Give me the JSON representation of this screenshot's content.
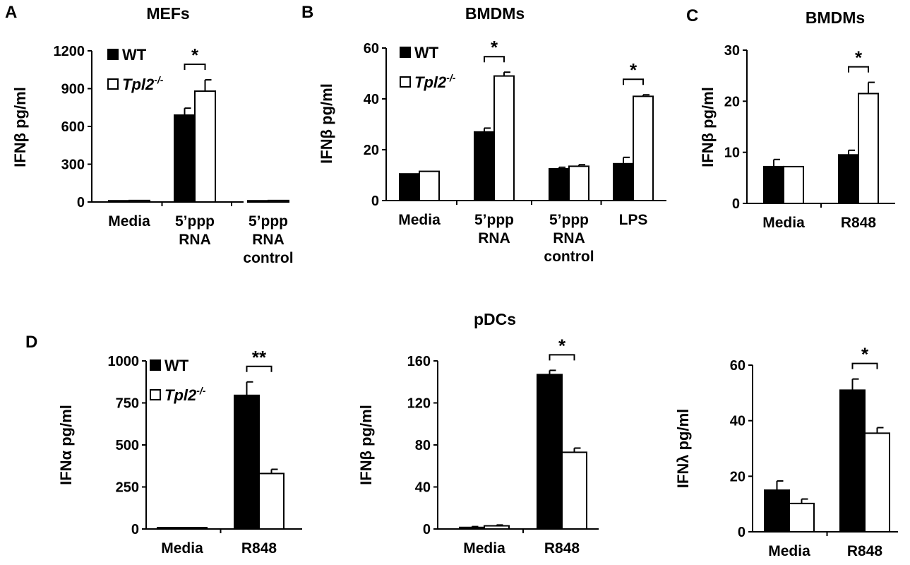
{
  "figure_title": "pDCs",
  "legend": {
    "wt": "WT",
    "ko": "Tpl2",
    "ko_sup": "-/-"
  },
  "colors": {
    "wt": "#000000",
    "ko": "#ffffff",
    "stroke": "#000000"
  },
  "chart_data": [
    {
      "panel": "A",
      "type": "bar",
      "title": "MEFs",
      "ylabel_prefix": "IFN",
      "ylabel_greek": "β",
      "ylabel_suffix": " pg/ml",
      "ylim": [
        0,
        1200
      ],
      "yticks": [
        0,
        300,
        600,
        900,
        1200
      ],
      "categories": [
        [
          "Media"
        ],
        [
          "5’ppp",
          "RNA"
        ],
        [
          "5’ppp",
          "RNA",
          "control"
        ]
      ],
      "series": [
        {
          "name": "WT",
          "values": [
            10,
            690,
            10
          ],
          "errors": [
            0,
            55,
            0
          ]
        },
        {
          "name": "Tpl2-/-",
          "values": [
            12,
            880,
            12
          ],
          "errors": [
            0,
            90,
            0
          ]
        }
      ],
      "significance": [
        {
          "category": 1,
          "label": "*"
        }
      ],
      "legend": true
    },
    {
      "panel": "B",
      "type": "bar",
      "title": "BMDMs",
      "ylabel_prefix": "IFN",
      "ylabel_greek": "β",
      "ylabel_suffix": " pg/ml",
      "ylim": [
        0,
        60
      ],
      "yticks": [
        0,
        20,
        40,
        60
      ],
      "categories": [
        [
          "Media"
        ],
        [
          "5’ppp",
          "RNA"
        ],
        [
          "5’ppp",
          "RNA",
          "control"
        ],
        [
          "LPS"
        ]
      ],
      "series": [
        {
          "name": "WT",
          "values": [
            10.5,
            27,
            12.5,
            14.5
          ],
          "errors": [
            0,
            1.5,
            0.6,
            2.5
          ]
        },
        {
          "name": "Tpl2-/-",
          "values": [
            11.5,
            49,
            13.5,
            41
          ],
          "errors": [
            0,
            1.5,
            0.6,
            0.6
          ]
        }
      ],
      "significance": [
        {
          "category": 1,
          "label": "*"
        },
        {
          "category": 3,
          "label": "*"
        }
      ],
      "legend": true
    },
    {
      "panel": "C",
      "type": "bar",
      "title": "BMDMs",
      "ylabel_prefix": "IFN",
      "ylabel_greek": "β",
      "ylabel_suffix": " pg/ml",
      "ylim": [
        0,
        30
      ],
      "yticks": [
        0,
        10,
        20,
        30
      ],
      "categories": [
        [
          "Media"
        ],
        [
          "R848"
        ]
      ],
      "series": [
        {
          "name": "WT",
          "values": [
            7.2,
            9.5
          ],
          "errors": [
            1.4,
            0.9
          ]
        },
        {
          "name": "Tpl2-/-",
          "values": [
            7.2,
            21.5
          ],
          "errors": [
            0,
            2.2
          ]
        }
      ],
      "significance": [
        {
          "category": 1,
          "label": "*"
        }
      ],
      "legend": false
    },
    {
      "panel": "D",
      "type": "bar",
      "title": "",
      "ylabel_prefix": "IFN",
      "ylabel_greek": "α",
      "ylabel_suffix": " pg/ml",
      "ylim": [
        0,
        1000
      ],
      "yticks": [
        0,
        250,
        500,
        750,
        1000
      ],
      "categories": [
        [
          "Media"
        ],
        [
          "R848"
        ]
      ],
      "series": [
        {
          "name": "WT",
          "values": [
            8,
            795
          ],
          "errors": [
            0,
            80
          ]
        },
        {
          "name": "Tpl2-/-",
          "values": [
            8,
            330
          ],
          "errors": [
            0,
            25
          ]
        }
      ],
      "significance": [
        {
          "category": 1,
          "label": "**"
        }
      ],
      "legend": true
    },
    {
      "panel": "",
      "type": "bar",
      "title": "",
      "ylabel_prefix": "IFN",
      "ylabel_greek": "β",
      "ylabel_suffix": " pg/ml",
      "ylim": [
        0,
        160
      ],
      "yticks": [
        0,
        40,
        80,
        120,
        160
      ],
      "categories": [
        [
          "Media"
        ],
        [
          "R848"
        ]
      ],
      "series": [
        {
          "name": "WT",
          "values": [
            1.5,
            147
          ],
          "errors": [
            0.8,
            4
          ]
        },
        {
          "name": "Tpl2-/-",
          "values": [
            3,
            73
          ],
          "errors": [
            0.8,
            4
          ]
        }
      ],
      "significance": [
        {
          "category": 1,
          "label": "*"
        }
      ],
      "legend": false
    },
    {
      "panel": "",
      "type": "bar",
      "title": "",
      "ylabel_prefix": "IFN",
      "ylabel_greek": "λ",
      "ylabel_suffix": " pg/ml",
      "ylim": [
        0,
        60
      ],
      "yticks": [
        0,
        20,
        40,
        60
      ],
      "categories": [
        [
          "Media"
        ],
        [
          "R848"
        ]
      ],
      "series": [
        {
          "name": "WT",
          "values": [
            15,
            51
          ],
          "errors": [
            3.3,
            4
          ]
        },
        {
          "name": "Tpl2-/-",
          "values": [
            10.2,
            35.5
          ],
          "errors": [
            1.6,
            2
          ]
        }
      ],
      "significance": [
        {
          "category": 1,
          "label": "*"
        }
      ],
      "legend": false
    }
  ]
}
